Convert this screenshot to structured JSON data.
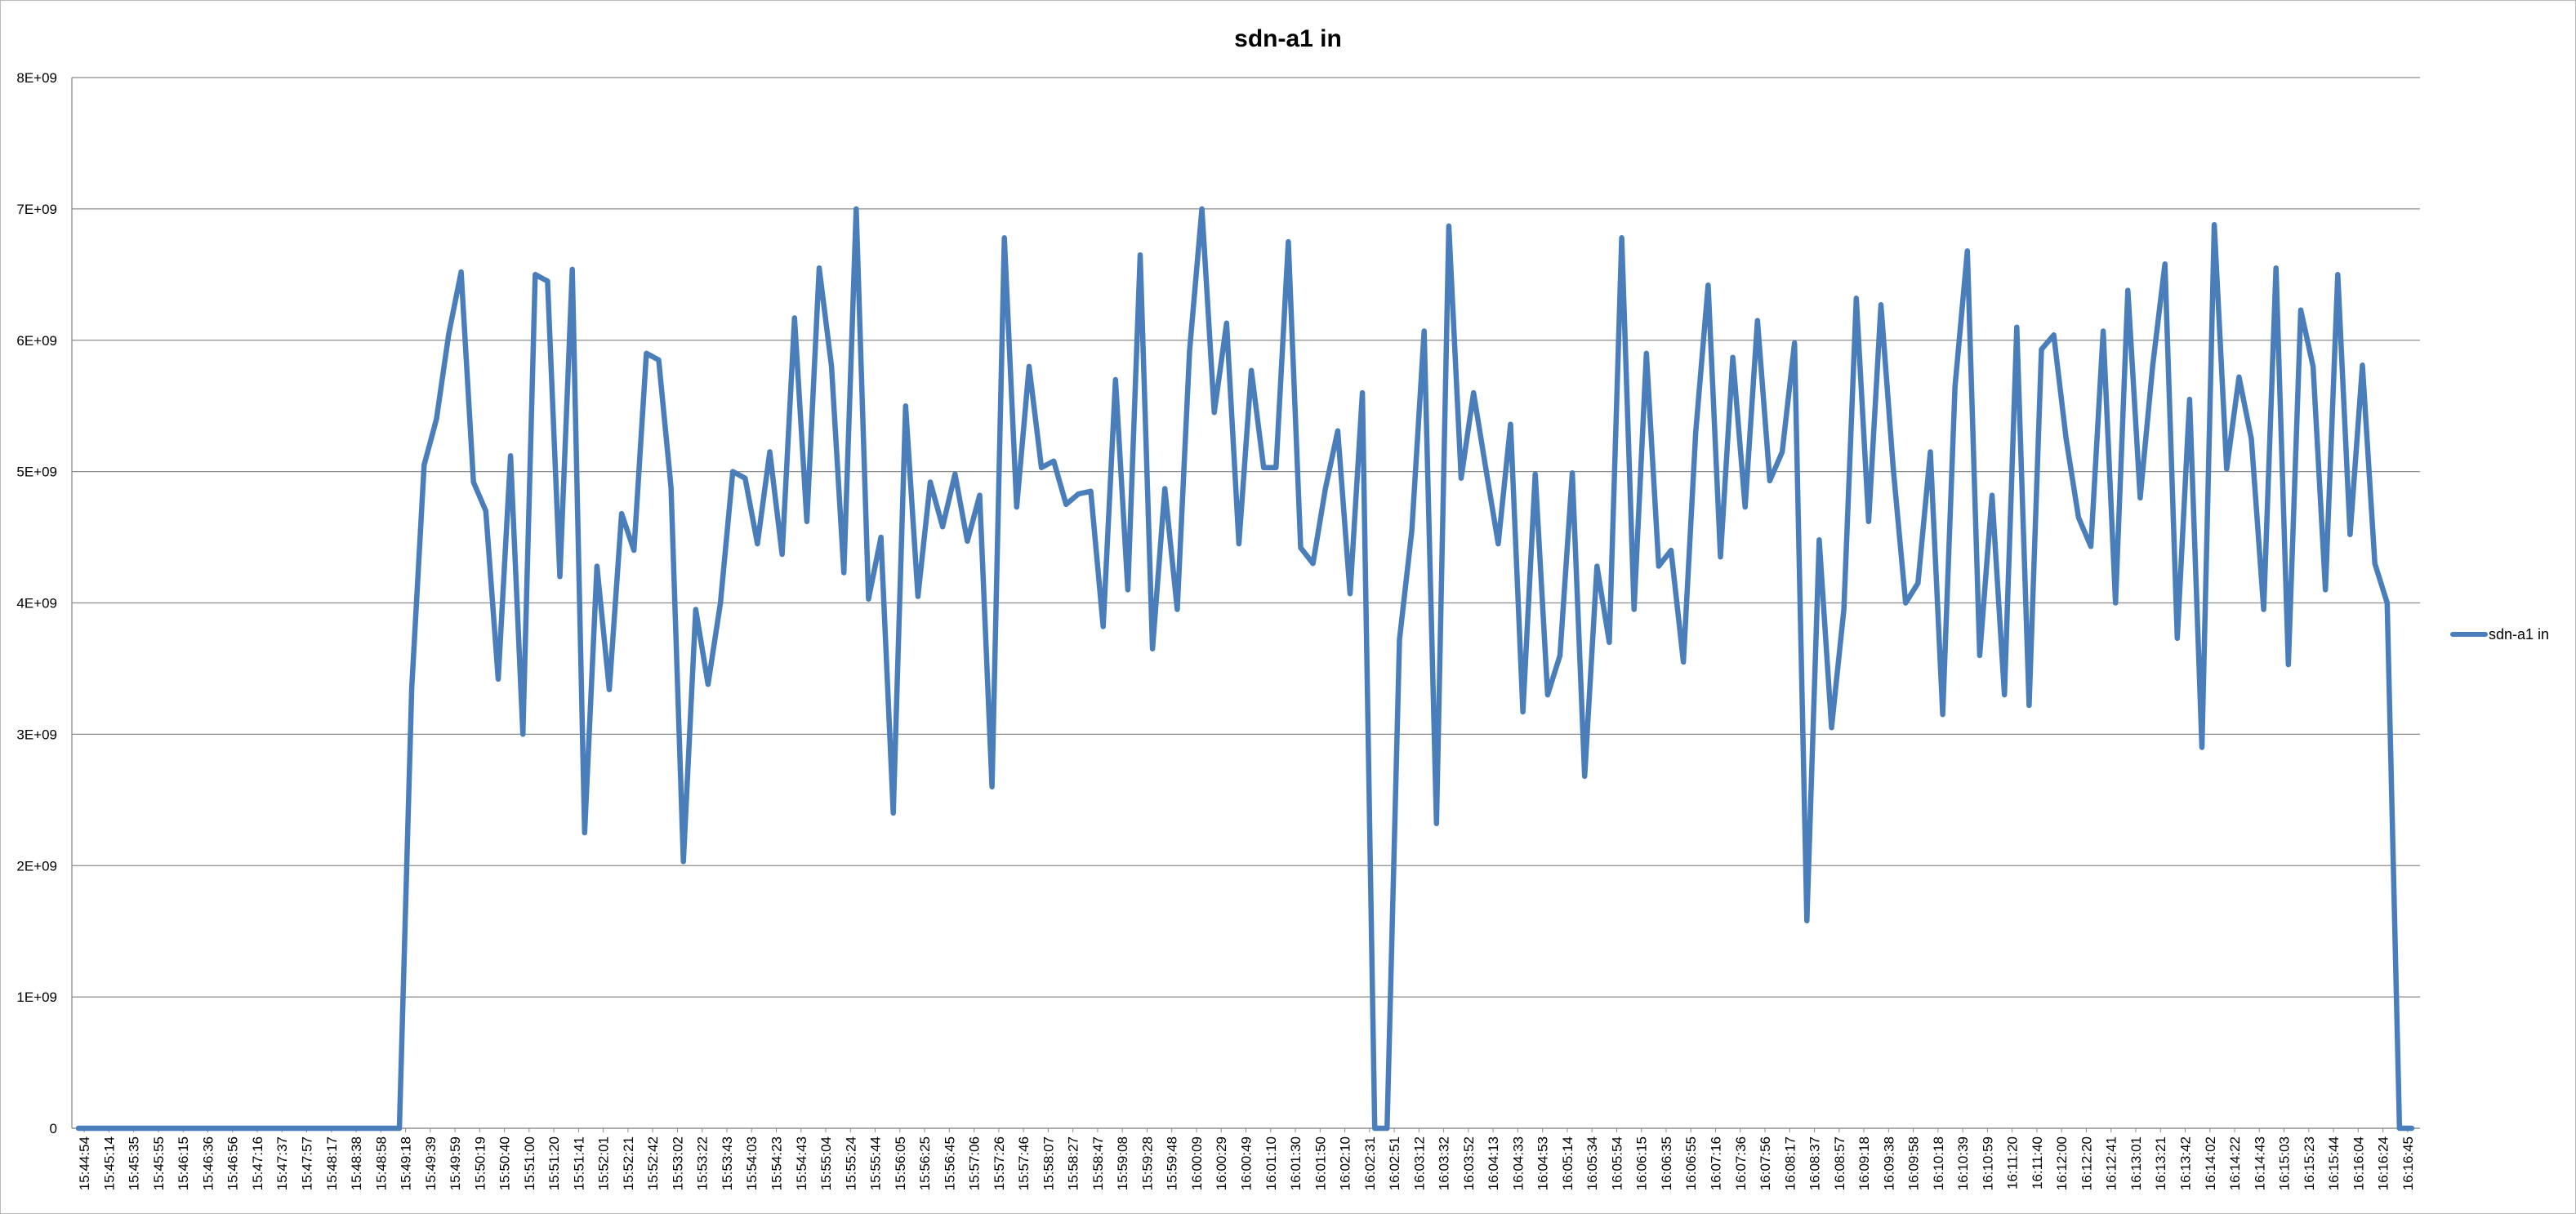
{
  "chart_data": {
    "type": "line",
    "title": "sdn-a1 in",
    "xlabel": "",
    "ylabel": "",
    "ylim": [
      0,
      8000000000
    ],
    "y_ticks": [
      "0",
      "1E+09",
      "2E+09",
      "3E+09",
      "4E+09",
      "5E+09",
      "6E+09",
      "7E+09",
      "8E+09"
    ],
    "grid": "horizontal",
    "legend_position": "right",
    "color": "#4a7ebb",
    "x_tick_labels": [
      "15:44:54",
      "15:45:14",
      "15:45:35",
      "15:45:55",
      "15:46:15",
      "15:46:36",
      "15:46:56",
      "15:47:16",
      "15:47:37",
      "15:47:57",
      "15:48:17",
      "15:48:38",
      "15:48:58",
      "15:49:18",
      "15:49:39",
      "15:49:59",
      "15:50:19",
      "15:50:40",
      "15:51:00",
      "15:51:20",
      "15:51:41",
      "15:52:01",
      "15:52:21",
      "15:52:42",
      "15:53:02",
      "15:53:22",
      "15:53:43",
      "15:54:03",
      "15:54:23",
      "15:54:43",
      "15:55:04",
      "15:55:24",
      "15:55:44",
      "15:56:05",
      "15:56:25",
      "15:56:45",
      "15:57:06",
      "15:57:26",
      "15:57:46",
      "15:58:07",
      "15:58:27",
      "15:58:47",
      "15:59:08",
      "15:59:28",
      "15:59:48",
      "16:00:09",
      "16:00:29",
      "16:00:49",
      "16:01:10",
      "16:01:30",
      "16:01:50",
      "16:02:10",
      "16:02:31",
      "16:02:51",
      "16:03:12",
      "16:03:32",
      "16:03:52",
      "16:04:13",
      "16:04:33",
      "16:04:53",
      "16:05:14",
      "16:05:34",
      "16:05:54",
      "16:06:15",
      "16:06:35",
      "16:06:55",
      "16:07:16",
      "16:07:36",
      "16:07:56",
      "16:08:17",
      "16:08:37",
      "16:08:57",
      "16:09:18",
      "16:09:38",
      "16:09:58",
      "16:10:18",
      "16:10:39",
      "16:10:59",
      "16:11:20",
      "16:11:40",
      "16:12:00",
      "16:12:20",
      "16:12:41",
      "16:13:01",
      "16:13:21",
      "16:13:42",
      "16:14:02",
      "16:14:22",
      "16:14:43",
      "16:15:03",
      "16:15:23",
      "16:15:44",
      "16:16:04",
      "16:16:24",
      "16:16:45"
    ],
    "series": [
      {
        "name": "sdn-a1 in",
        "values": [
          0,
          0,
          0,
          0,
          0,
          0,
          0,
          0,
          0,
          0,
          0,
          0,
          0,
          0,
          0,
          0,
          0,
          0,
          0,
          0,
          0,
          0,
          0,
          0,
          0,
          0,
          0,
          3350000000.0,
          5050000000.0,
          5400000000.0,
          6050000000.0,
          6520000000.0,
          4920000000.0,
          4700000000.0,
          3420000000.0,
          5120000000.0,
          3000000000.0,
          6500000000.0,
          6450000000.0,
          4200000000.0,
          6540000000.0,
          2250000000.0,
          4280000000.0,
          3340000000.0,
          4680000000.0,
          4400000000.0,
          5900000000.0,
          5850000000.0,
          4880000000.0,
          2030000000.0,
          3950000000.0,
          3380000000.0,
          4000000000.0,
          5000000000.0,
          4950000000.0,
          4450000000.0,
          5150000000.0,
          4370000000.0,
          6170000000.0,
          4620000000.0,
          6550000000.0,
          5800000000.0,
          4230000000.0,
          7000000000.0,
          4030000000.0,
          4500000000.0,
          2400000000.0,
          5500000000.0,
          4050000000.0,
          4920000000.0,
          4580000000.0,
          4980000000.0,
          4470000000.0,
          4820000000.0,
          2600000000.0,
          6780000000.0,
          4730000000.0,
          5800000000.0,
          5030000000.0,
          5080000000.0,
          4750000000.0,
          4830000000.0,
          4850000000.0,
          3820000000.0,
          5700000000.0,
          4100000000.0,
          6650000000.0,
          3650000000.0,
          4870000000.0,
          3950000000.0,
          5920000000.0,
          7000000000.0,
          5450000000.0,
          6130000000.0,
          4450000000.0,
          5770000000.0,
          5030000000.0,
          5030000000.0,
          6750000000.0,
          4420000000.0,
          4300000000.0,
          4870000000.0,
          5310000000.0,
          4070000000.0,
          5600000000.0,
          0,
          0,
          3720000000.0,
          4550000000.0,
          6070000000.0,
          2320000000.0,
          6870000000.0,
          4950000000.0,
          5600000000.0,
          5020000000.0,
          4450000000.0,
          5360000000.0,
          3170000000.0,
          4980000000.0,
          3300000000.0,
          3600000000.0,
          4990000000.0,
          2680000000.0,
          4280000000.0,
          3700000000.0,
          6780000000.0,
          3950000000.0,
          5900000000.0,
          4280000000.0,
          4400000000.0,
          3550000000.0,
          5300000000.0,
          6420000000.0,
          4350000000.0,
          5870000000.0,
          4730000000.0,
          6150000000.0,
          4930000000.0,
          5150000000.0,
          5980000000.0,
          1580000000.0,
          4480000000.0,
          3050000000.0,
          3950000000.0,
          6320000000.0,
          4620000000.0,
          6270000000.0,
          5020000000.0,
          4000000000.0,
          4150000000.0,
          5150000000.0,
          3150000000.0,
          5650000000.0,
          6680000000.0,
          3600000000.0,
          4820000000.0,
          3300000000.0,
          6100000000.0,
          3220000000.0,
          5930000000.0,
          6040000000.0,
          5250000000.0,
          4650000000.0,
          4430000000.0,
          6070000000.0,
          4000000000.0,
          6380000000.0,
          4800000000.0,
          5800000000.0,
          6580000000.0,
          3730000000.0,
          5550000000.0,
          2900000000.0,
          6880000000.0,
          5020000000.0,
          5720000000.0,
          5250000000.0,
          3950000000.0,
          6550000000.0,
          3530000000.0,
          6230000000.0,
          5800000000.0,
          4100000000.0,
          6500000000.0,
          4520000000.0,
          5810000000.0,
          4300000000.0,
          4000000000.0,
          0,
          0
        ]
      }
    ]
  }
}
